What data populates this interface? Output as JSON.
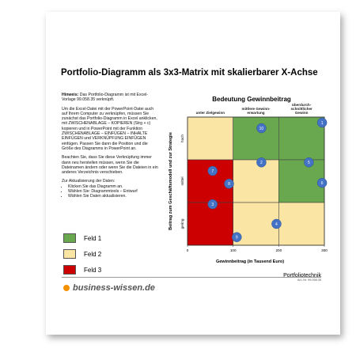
{
  "document": {
    "title": "Portfolio-Diagramm als 3x3-Matrix mit skalierbarer X-Achse",
    "note_label": "Hinweis:",
    "note_text": " Das Portfolio-Diagramm ist mit Excel-Vorlage 99.058.35 verknüpft.",
    "paragraphs": [
      "Um die Excel-Datei mit der PowerPoint-Datei auch auf Ihrem Computer zu verknüpfen, müssen Sie zunächst das Portfolio-Diagramm in Excel anklicken, mit ZWISCHENABLAGE – KOPIEREN (Strg + c) kopieren und in PowerPoint mit der Funktion ZWISCHENABLAGE – EINFÜGEN – INHALTE EINFÜGEN und VERKNÜPFUNG EINFÜGEN einfügen. Passen Sie dann die Position und die Größe des Diagramms in PowerPoint an.",
      "Beachten Sie, dass Sie diese Verknüpfung immer dann neu herstellen müssen, wenn Sie die Dateinamen ändern oder wenn Sie die Dateien in ein anderes Verzeichnis verschieben."
    ],
    "list_title": "Zur Aktualisierung der Daten:",
    "list": [
      "Klicken Sie das Diagramm an.",
      "Wählen Sie: Diagrammtools – Entwurf",
      "Wählen Sie Daten aktualisieren."
    ],
    "legend": [
      {
        "name": "Feld 1",
        "color": "#6aa84f"
      },
      {
        "name": "Feld 2",
        "color": "#fbe5a5"
      },
      {
        "name": "Feld 3",
        "color": "#cc0000"
      }
    ],
    "brand": "business-wissen.de",
    "footer_title": "Portfoliotechnik",
    "footer_ref": "Art.-Nr. 99.058.35"
  },
  "chart_data": {
    "type": "scatter",
    "title": "Bedeutung Gewinnbeitrag",
    "x_label": "Gewinnbeitrag (in Tausend Euro)",
    "y_label": "Beitrag zum Geschäftsmodell und zur Strategie",
    "columns": [
      "unter Zielgewinn",
      "mittlere Gewinn-\nerwartung",
      "überdurch-\nschnittlicher\nGewinn"
    ],
    "rows": [
      "hoch",
      "mittel",
      "gering"
    ],
    "cell_colors": [
      [
        "#fbe5a5",
        "#6aa84f",
        "#6aa84f"
      ],
      [
        "#cc0000",
        "#fbe5a5",
        "#6aa84f"
      ],
      [
        "#cc0000",
        "#fbe5a5",
        "#fbe5a5"
      ]
    ],
    "xlim": [
      0,
      300
    ],
    "xticks": [
      0,
      100,
      200,
      300
    ],
    "ylim": [
      0,
      3
    ],
    "color": "#4472c4",
    "ids": [
      1,
      10,
      2,
      5,
      7,
      8,
      6,
      3,
      4,
      9
    ],
    "x": [
      295,
      162,
      162,
      266,
      55,
      91,
      295,
      55,
      195,
      108
    ],
    "values": [
      2.87,
      2.74,
      1.94,
      1.94,
      1.74,
      1.44,
      1.46,
      0.96,
      0.5,
      0.19
    ]
  }
}
